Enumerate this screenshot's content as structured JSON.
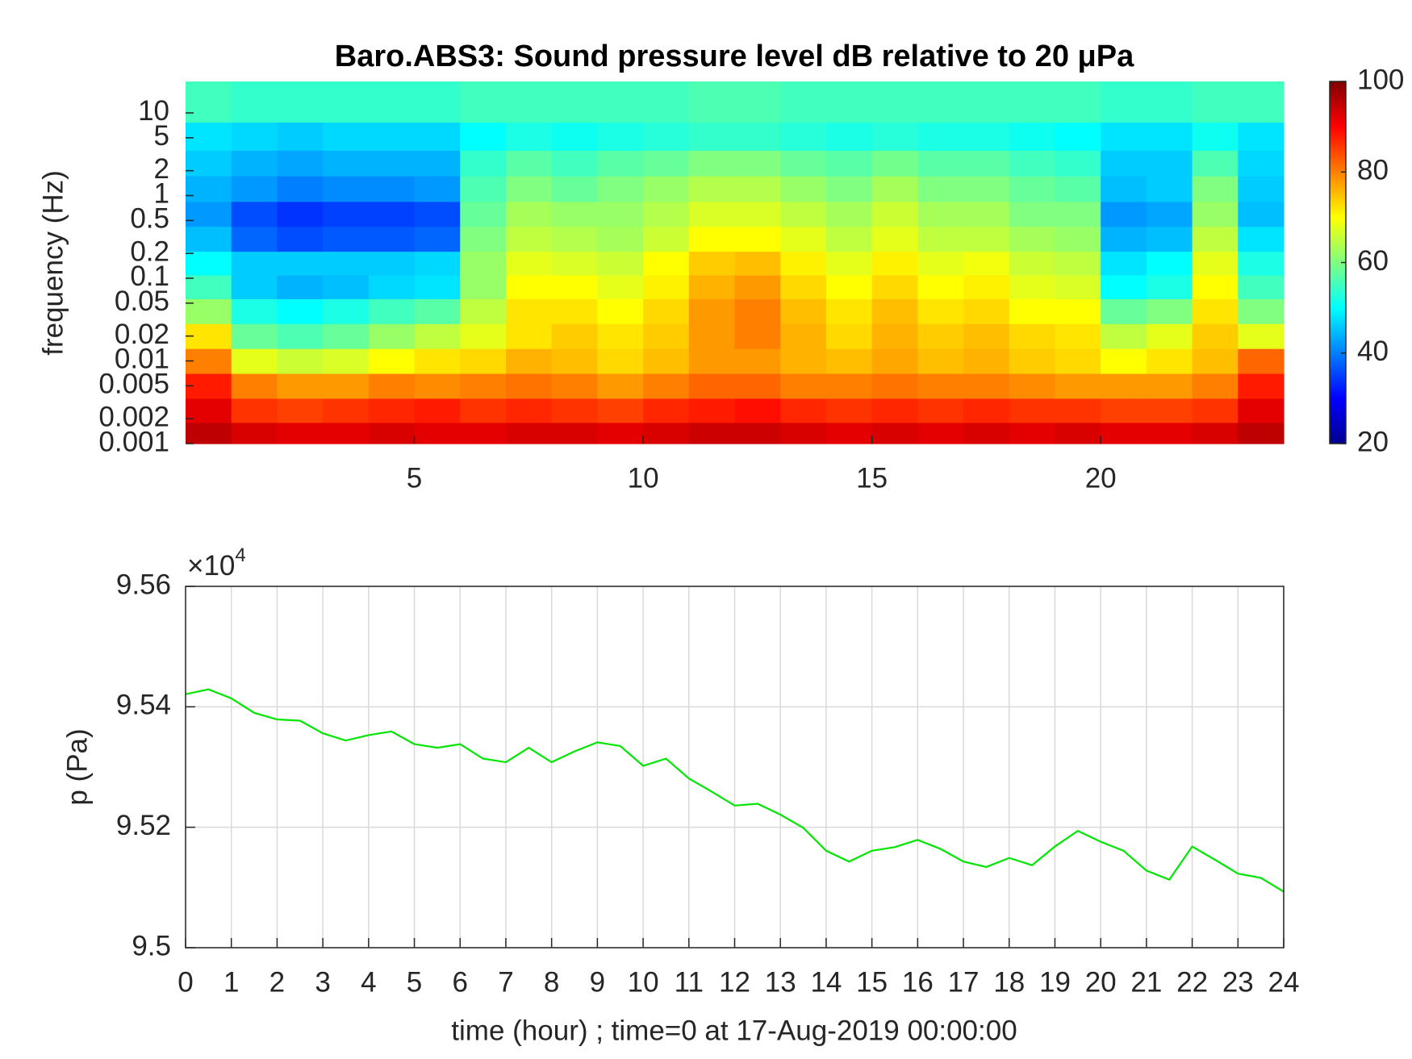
{
  "chart_data": [
    {
      "type": "heatmap",
      "title": "Baro.ABS3: Sound pressure level dB relative to 20 μPa",
      "ylabel": "frequency (Hz)",
      "colormap": "jet",
      "log_y": true,
      "xlim": [
        0,
        24
      ],
      "xticks": [
        5,
        10,
        15,
        20
      ],
      "ylim": [
        0.001,
        24
      ],
      "yticks": [
        0.001,
        0.002,
        0.005,
        0.01,
        0.02,
        0.05,
        0.1,
        0.2,
        0.5,
        1,
        2,
        5,
        10
      ],
      "clim": [
        20,
        100
      ],
      "cticks": [
        20,
        40,
        60,
        80,
        100
      ],
      "x": [
        0.5,
        1.5,
        2.5,
        3.5,
        4.5,
        5.5,
        6.5,
        7.5,
        8.5,
        9.5,
        10.5,
        11.5,
        12.5,
        13.5,
        14.5,
        15.5,
        16.5,
        17.5,
        18.5,
        19.5,
        20.5,
        21.5,
        22.5,
        23.5
      ],
      "y": [
        0.0013,
        0.0025,
        0.005,
        0.01,
        0.02,
        0.04,
        0.08,
        0.15,
        0.3,
        0.6,
        1.2,
        2.5,
        5,
        12
      ],
      "values": [
        [
          95,
          93,
          92,
          92,
          93,
          92,
          92,
          93,
          93,
          92,
          93,
          94,
          94,
          93,
          92,
          93,
          92,
          93,
          92,
          93,
          92,
          92,
          93,
          95
        ],
        [
          92,
          86,
          85,
          86,
          87,
          88,
          86,
          87,
          86,
          85,
          87,
          88,
          89,
          87,
          86,
          87,
          86,
          87,
          86,
          86,
          85,
          85,
          86,
          92
        ],
        [
          88,
          80,
          78,
          78,
          80,
          79,
          80,
          81,
          80,
          78,
          80,
          82,
          82,
          80,
          80,
          81,
          80,
          80,
          79,
          78,
          78,
          78,
          80,
          88
        ],
        [
          80,
          68,
          66,
          67,
          70,
          72,
          73,
          76,
          75,
          73,
          75,
          78,
          78,
          76,
          75,
          77,
          75,
          76,
          74,
          73,
          70,
          72,
          75,
          82
        ],
        [
          72,
          58,
          56,
          58,
          62,
          65,
          68,
          72,
          74,
          72,
          74,
          78,
          80,
          76,
          73,
          76,
          74,
          75,
          73,
          72,
          65,
          68,
          74,
          68
        ],
        [
          62,
          52,
          50,
          52,
          55,
          57,
          65,
          72,
          72,
          70,
          73,
          78,
          80,
          75,
          72,
          75,
          72,
          73,
          70,
          70,
          58,
          60,
          72,
          60
        ],
        [
          55,
          46,
          44,
          45,
          47,
          48,
          62,
          70,
          70,
          68,
          71,
          76,
          78,
          73,
          70,
          73,
          70,
          71,
          68,
          67,
          50,
          52,
          70,
          55
        ],
        [
          50,
          46,
          46,
          46,
          46,
          47,
          62,
          68,
          67,
          66,
          70,
          74,
          75,
          71,
          68,
          71,
          68,
          69,
          66,
          65,
          48,
          50,
          68,
          52
        ],
        [
          45,
          38,
          36,
          37,
          37,
          38,
          60,
          65,
          64,
          63,
          66,
          70,
          70,
          68,
          65,
          68,
          65,
          65,
          63,
          62,
          44,
          45,
          65,
          48
        ],
        [
          42,
          36,
          34,
          35,
          35,
          36,
          58,
          63,
          62,
          62,
          64,
          67,
          67,
          65,
          63,
          66,
          63,
          63,
          60,
          60,
          42,
          43,
          62,
          45
        ],
        [
          44,
          42,
          40,
          41,
          41,
          42,
          56,
          60,
          58,
          60,
          62,
          64,
          64,
          62,
          60,
          63,
          60,
          60,
          58,
          57,
          45,
          46,
          60,
          46
        ],
        [
          46,
          44,
          43,
          44,
          44,
          44,
          54,
          57,
          55,
          57,
          58,
          60,
          60,
          58,
          57,
          59,
          57,
          57,
          55,
          54,
          46,
          46,
          56,
          47
        ],
        [
          48,
          47,
          46,
          47,
          47,
          47,
          50,
          52,
          51,
          52,
          53,
          54,
          54,
          53,
          52,
          53,
          52,
          52,
          51,
          50,
          48,
          48,
          51,
          48
        ],
        [
          55,
          54,
          54,
          54,
          54,
          54,
          55,
          55,
          55,
          55,
          55,
          56,
          56,
          55,
          55,
          55,
          55,
          55,
          55,
          55,
          54,
          54,
          55,
          55
        ]
      ]
    },
    {
      "type": "line",
      "xlabel": "time (hour) ; time=0 at 17-Aug-2019 00:00:00",
      "ylabel": "p (Pa)",
      "y_multiplier": "×10",
      "y_multiplier_exponent": "4",
      "grid": true,
      "xlim": [
        0,
        24
      ],
      "xticks": [
        0,
        1,
        2,
        3,
        4,
        5,
        6,
        7,
        8,
        9,
        10,
        11,
        12,
        13,
        14,
        15,
        16,
        17,
        18,
        19,
        20,
        21,
        22,
        23,
        24
      ],
      "ylim": [
        9.5,
        9.56
      ],
      "yticks": [
        9.5,
        9.52,
        9.54,
        9.56
      ],
      "x": [
        0,
        0.5,
        1,
        1.5,
        2,
        2.5,
        3,
        3.5,
        4,
        4.5,
        5,
        5.5,
        6,
        6.5,
        7,
        7.5,
        8,
        8.5,
        9,
        9.5,
        10,
        10.5,
        11,
        11.5,
        12,
        12.5,
        13,
        13.5,
        14,
        14.5,
        15,
        15.5,
        16,
        16.5,
        17,
        17.5,
        18,
        18.5,
        19,
        19.5,
        20,
        20.5,
        21,
        21.5,
        22,
        22.5,
        23,
        23.5,
        24
      ],
      "series": [
        {
          "color": "#00e600",
          "values": [
            9.5421,
            9.5429,
            9.5414,
            9.539,
            9.5379,
            9.5377,
            9.5356,
            9.5344,
            9.5353,
            9.5359,
            9.5338,
            9.5332,
            9.5338,
            9.5314,
            9.5308,
            9.5332,
            9.5308,
            9.5326,
            9.5341,
            9.5335,
            9.5302,
            9.5314,
            9.5281,
            9.5259,
            9.5236,
            9.5239,
            9.5221,
            9.5199,
            9.5161,
            9.5143,
            9.5161,
            9.5167,
            9.5179,
            9.5164,
            9.5143,
            9.5134,
            9.5149,
            9.5137,
            9.5168,
            9.5194,
            9.5176,
            9.5161,
            9.5128,
            9.5113,
            9.5168,
            9.5146,
            9.5123,
            9.5116,
            9.5093
          ]
        }
      ]
    }
  ]
}
